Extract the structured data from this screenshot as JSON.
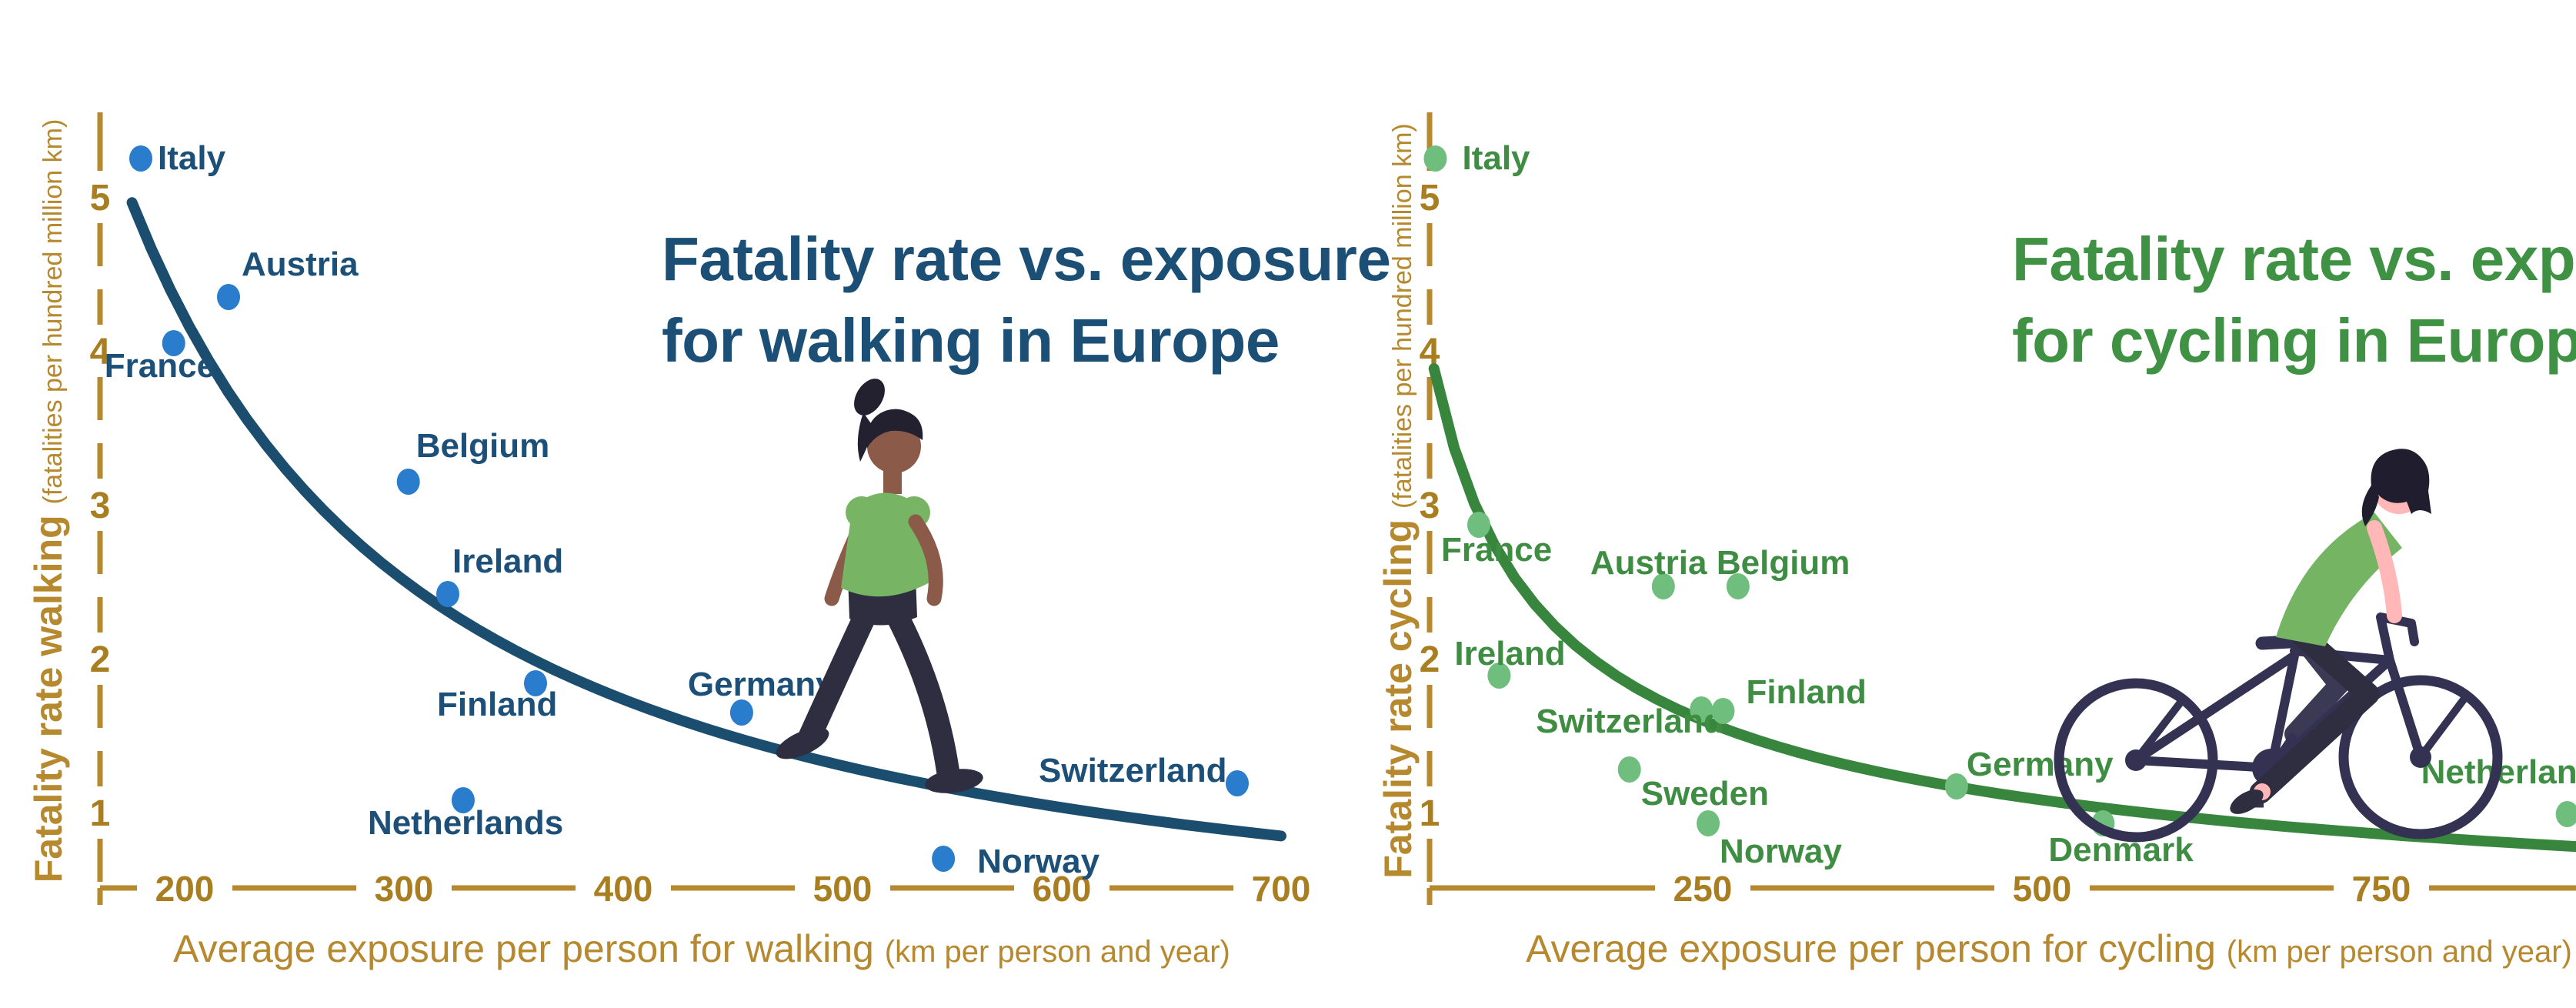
{
  "page": {
    "background": "#ffffff"
  },
  "chart_data": [
    {
      "id": "walking",
      "type": "scatter",
      "title_lines": [
        "Fatality rate vs. exposure",
        "for walking in Europe"
      ],
      "xlabel": "Average exposure per person for walking",
      "xlabel_sub": "(km per person and year)",
      "ylabel": "Fatality rate walking",
      "ylabel_sub": "(fatalities per hundred million km)",
      "x_ticks": [
        200,
        300,
        400,
        500,
        600,
        700
      ],
      "y_ticks": [
        1,
        2,
        3,
        4,
        5
      ],
      "xlim": [
        160,
        720
      ],
      "ylim": [
        0.5,
        5.6
      ],
      "grid": false,
      "legend": "none",
      "colors": {
        "title": "#1c4f76",
        "country_label": "#1d5078",
        "dot": "#2a7ccc",
        "curve": "#1b4d6e",
        "axis": "#b6892f",
        "tick_text": "#a87e20"
      },
      "points": [
        {
          "country": "Italy",
          "x": 180,
          "y": 5.25,
          "label_offset": [
            22,
            14
          ]
        },
        {
          "country": "Austria",
          "x": 220,
          "y": 4.35,
          "label_offset": [
            17,
            -28
          ]
        },
        {
          "country": "France",
          "x": 195,
          "y": 4.05,
          "label_offset": [
            -90,
            44
          ]
        },
        {
          "country": "Belgium",
          "x": 302,
          "y": 3.15,
          "label_offset": [
            10,
            -32
          ]
        },
        {
          "country": "Ireland",
          "x": 320,
          "y": 2.42,
          "label_offset": [
            6,
            -28
          ]
        },
        {
          "country": "Finland",
          "x": 360,
          "y": 1.84,
          "label_offset": [
            -128,
            42
          ]
        },
        {
          "country": "Netherlands",
          "x": 327,
          "y": 1.08,
          "label_offset": [
            -124,
            44
          ]
        },
        {
          "country": "Germany",
          "x": 454,
          "y": 1.65,
          "label_offset": [
            -70,
            -22
          ]
        },
        {
          "country": "Norway",
          "x": 546,
          "y": 0.7,
          "label_offset": [
            44,
            18
          ]
        },
        {
          "country": "Switzerland",
          "x": 680,
          "y": 1.19,
          "label_offset": [
            -258,
            -2
          ]
        }
      ],
      "trend_curve": {
        "model": "y = a*(x0/x)^b",
        "a": 5.0,
        "x0": 175,
        "b": 1.28,
        "x_range": [
          176,
          700
        ]
      },
      "illustration": "walking-person"
    },
    {
      "id": "cycling",
      "type": "scatter",
      "title_lines": [
        "Fatality rate vs. exposure",
        "for cycling in Europe"
      ],
      "xlabel": "Average exposure per person for cycling",
      "xlabel_sub": "(km per person and year)",
      "ylabel": "Fatality rate cycling",
      "ylabel_sub": "(fatalities per hundred million km)",
      "x_ticks": [
        250,
        500,
        750
      ],
      "y_ticks": [
        1,
        2,
        3,
        4,
        5
      ],
      "xlim": [
        40,
        960
      ],
      "ylim": [
        0.5,
        5.6
      ],
      "grid": false,
      "legend": "none",
      "colors": {
        "title": "#3f9143",
        "country_label": "#3e8d42",
        "dot": "#6fbe7e",
        "curve": "#38853e",
        "axis": "#b6892f",
        "tick_text": "#a87e20"
      },
      "points": [
        {
          "country": "Italy",
          "x": 53,
          "y": 5.25,
          "label_offset": [
            35,
            14
          ]
        },
        {
          "country": "France",
          "x": 85,
          "y": 2.87,
          "label_offset": [
            -49,
            47
          ]
        },
        {
          "country": "Austria",
          "x": 221,
          "y": 2.47,
          "label_offset": [
            -95,
            -16
          ]
        },
        {
          "country": "Belgium",
          "x": 276,
          "y": 2.47,
          "label_offset": [
            -28,
            -16
          ]
        },
        {
          "country": "Ireland",
          "x": 100,
          "y": 1.89,
          "label_offset": [
            -58,
            -14
          ]
        },
        {
          "country": "Switzerland",
          "x": 249,
          "y": 1.67,
          "label_offset": [
            -215,
            30
          ]
        },
        {
          "country": "Finland",
          "x": 265,
          "y": 1.66,
          "label_offset": [
            30,
            -10
          ]
        },
        {
          "country": "Sweden",
          "x": 196,
          "y": 1.28,
          "label_offset": [
            15,
            46
          ]
        },
        {
          "country": "Norway",
          "x": 254,
          "y": 0.93,
          "label_offset": [
            15,
            51
          ]
        },
        {
          "country": "Germany",
          "x": 437,
          "y": 1.17,
          "label_offset": [
            13,
            -14
          ]
        },
        {
          "country": "Denmark",
          "x": 545,
          "y": 0.93,
          "label_offset": [
            -71,
            49
          ]
        },
        {
          "country": "Netherlands",
          "x": 887,
          "y": 0.99,
          "label_offset": [
            -190,
            -40
          ]
        }
      ],
      "trend_curve": {
        "model": "y = a*(x0/x)^b",
        "a": 1.6,
        "x0": 250,
        "b": 0.565,
        "x_range": [
          52,
          945
        ]
      },
      "illustration": "cyclist"
    }
  ]
}
